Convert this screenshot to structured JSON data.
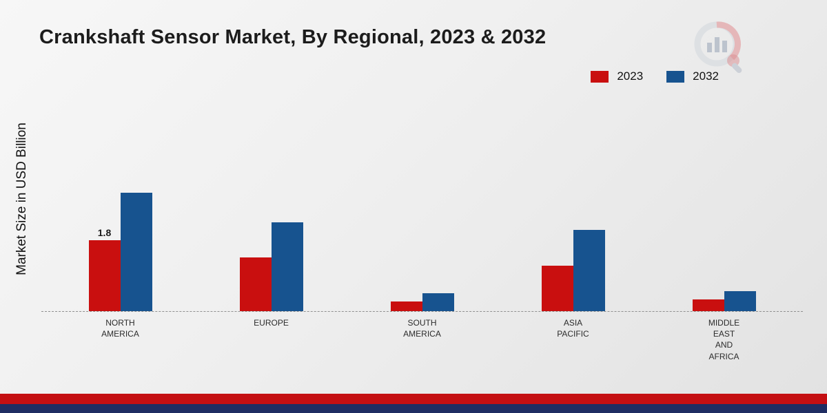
{
  "title": "Crankshaft Sensor Market, By Regional, 2023 & 2032",
  "y_axis_label": "Market Size in USD Billion",
  "footer": {
    "red_strip_color": "#c40f12",
    "blue_strip_color": "#1f2d62"
  },
  "logo": {
    "name": "market-research-future-logo"
  },
  "chart_data": {
    "type": "bar",
    "title": "Crankshaft Sensor Market, By Regional, 2023 & 2032",
    "xlabel": "",
    "ylabel": "Market Size in USD Billion",
    "categories": [
      "NORTH\nAMERICA",
      "EUROPE",
      "SOUTH\nAMERICA",
      "ASIA\nPACIFIC",
      "MIDDLE\nEAST\nAND\nAFRICA"
    ],
    "series": [
      {
        "name": "2023",
        "color": "#c90f0f",
        "values": [
          1.8,
          1.35,
          0.25,
          1.15,
          0.3
        ]
      },
      {
        "name": "2032",
        "color": "#17538f",
        "values": [
          3.0,
          2.25,
          0.45,
          2.05,
          0.5
        ]
      }
    ],
    "data_labels": [
      {
        "series": "2023",
        "category_index": 0,
        "text": "1.8"
      }
    ],
    "ylim": [
      0,
      3.5
    ],
    "grid": false,
    "baseline_style": "dashed",
    "legend_position": "top-right"
  }
}
